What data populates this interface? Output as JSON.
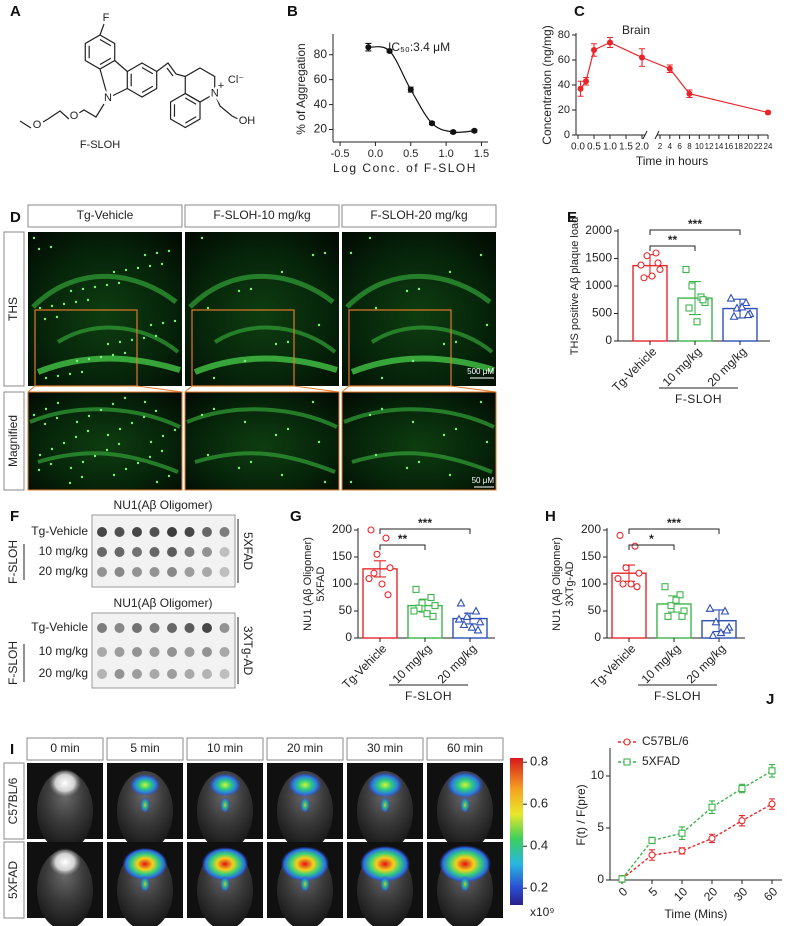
{
  "panel_labels": [
    "A",
    "B",
    "C",
    "D",
    "E",
    "F",
    "G",
    "H",
    "I",
    "J"
  ],
  "panel_a": {
    "labels": [
      "F",
      "N",
      "O",
      "O",
      "N",
      "+",
      "Cl⁻",
      "OH"
    ],
    "name": "F-SLOH"
  },
  "panel_d": {
    "columns": [
      "Tg-Vehicle",
      "F-SLOH-10 mg/kg",
      "F-SLOH-20 mg/kg"
    ],
    "rows": [
      "THS",
      "Magnified"
    ],
    "scale_bars": [
      "500 μM",
      "50 μM"
    ]
  },
  "panel_f": {
    "blots": [
      {
        "title": "NU1(Aβ Oligomer)",
        "rows": [
          "Tg-Vehicle",
          "10 mg/kg",
          "20 mg/kg"
        ],
        "group": "F-SLOH",
        "model": "5XFAD"
      },
      {
        "title": "NU1(Aβ Oligomer)",
        "rows": [
          "Tg-Vehicle",
          "10 mg/kg",
          "20 mg/kg"
        ],
        "group": "F-SLOH",
        "model": "3XTg-AD"
      }
    ]
  },
  "panel_i": {
    "columns": [
      "0 min",
      "5 min",
      "10 min",
      "20 min",
      "30 min",
      "60 min"
    ],
    "rows": [
      "C57BL/6",
      "5XFAD"
    ],
    "colorbar": {
      "clim": [
        0.12,
        0.82
      ],
      "ticks": [
        0.2,
        0.4,
        0.6,
        0.8
      ],
      "unit": "x10⁹"
    }
  },
  "chart_data": [
    {
      "type": "line",
      "x": [
        -0.1,
        0.2,
        0.5,
        0.8,
        1.1,
        1.4
      ],
      "values": [
        86,
        83,
        52,
        25,
        18,
        19
      ],
      "errors": [
        3,
        1,
        2,
        1,
        1,
        1
      ],
      "color": "#111111",
      "smooth": true,
      "xlim": [
        -0.6,
        1.55
      ],
      "xticks": [
        -0.5,
        {
          "value": 0,
          "label": "0.0"
        },
        0.5,
        {
          "value": 1,
          "label": "1.0"
        },
        1.5
      ],
      "ylim": [
        10,
        95
      ],
      "yticks": [
        20,
        40,
        60,
        80
      ],
      "xlabel": "Log Conc. of F-SLOH",
      "ylabel": "% of Aggregation",
      "annotation": "IC₅₀:3.4 μM"
    },
    {
      "type": "line",
      "title": "Brain",
      "x": [
        0.08,
        0.25,
        0.5,
        1,
        2,
        4,
        8,
        24
      ],
      "values": [
        37,
        43,
        68,
        74,
        62,
        53,
        33,
        18
      ],
      "errors": [
        6,
        3,
        5,
        4,
        7,
        3,
        3,
        1
      ],
      "color": "#e8262a",
      "smooth": false,
      "axis_break": true,
      "xlim": [
        0,
        2
      ],
      "xticks": [
        {
          "value": 0,
          "label": "0.0"
        },
        0.5,
        {
          "value": 1,
          "label": "1.0"
        },
        1.5,
        {
          "value": 2,
          "label": "2.0"
        }
      ],
      "x2lim": [
        2,
        24
      ],
      "x2ticks": [
        2,
        4,
        6,
        8,
        10,
        12,
        14,
        16,
        18,
        20,
        22,
        24
      ],
      "ylim": [
        0,
        80
      ],
      "yticks": [
        0,
        20,
        40,
        60,
        80
      ],
      "xlabel": "Time in hours",
      "ylabel": "Concentration (ng/mg)"
    },
    {
      "type": "bar",
      "categories": [
        "Tg-Vehicle",
        "10 mg/kg",
        "20 mg/kg"
      ],
      "values": [
        1370,
        780,
        590
      ],
      "errors": [
        200,
        300,
        170
      ],
      "colors": [
        "#e8262a",
        "#3cb44b",
        "#2e4fb5"
      ],
      "points": [
        [
          1380,
          1600,
          1550,
          1300,
          1150,
          1180,
          1420
        ],
        [
          1300,
          800,
          1000,
          700,
          600,
          350,
          750
        ],
        [
          780,
          700,
          600,
          500,
          450,
          620,
          480
        ]
      ],
      "ylim": [
        0,
        2000
      ],
      "yticks": [
        0,
        500,
        1000,
        1500,
        2000
      ],
      "ylabel": [
        "THS positive Aβ plaque load"
      ],
      "group_label": "F-SLOH",
      "significance": [
        "**",
        "***"
      ]
    },
    {
      "type": "bar",
      "categories": [
        "Tg-Vehicle",
        "10 mg/kg",
        "20 mg/kg"
      ],
      "values": [
        128,
        60,
        36
      ],
      "errors": [
        15,
        12,
        10
      ],
      "colors": [
        "#e8262a",
        "#3cb44b",
        "#2e4fb5"
      ],
      "points": [
        [
          200,
          185,
          155,
          130,
          120,
          100,
          80,
          110
        ],
        [
          90,
          75,
          65,
          60,
          55,
          45,
          40,
          50
        ],
        [
          65,
          50,
          40,
          30,
          25,
          20,
          15,
          35
        ]
      ],
      "ylim": [
        0,
        200
      ],
      "yticks": [
        0,
        50,
        100,
        150,
        200
      ],
      "ylabel": [
        "NU1 (Aβ Oligomer)",
        "5XFAD"
      ],
      "group_label": "F-SLOH",
      "significance": [
        "**",
        "***"
      ]
    },
    {
      "type": "bar",
      "categories": [
        "Tg-Vehicle",
        "10 mg/kg",
        "20 mg/kg"
      ],
      "values": [
        120,
        63,
        32
      ],
      "errors": [
        15,
        15,
        20
      ],
      "colors": [
        "#e8262a",
        "#3cb44b",
        "#2e4fb5"
      ],
      "points": [
        [
          190,
          170,
          130,
          120,
          100,
          100,
          95,
          110
        ],
        [
          95,
          80,
          60,
          50,
          40,
          70,
          40
        ],
        [
          55,
          50,
          30,
          20,
          5,
          10,
          15
        ]
      ],
      "ylim": [
        0,
        200
      ],
      "yticks": [
        0,
        50,
        100,
        150,
        200
      ],
      "ylabel": [
        "NU1 (Aβ Oligomer)",
        "3XTg-AD"
      ],
      "group_label": "F-SLOH",
      "significance": [
        "*",
        "***"
      ]
    },
    {
      "type": "line",
      "categories": [
        "0",
        "5",
        "10",
        "20",
        "30",
        "60"
      ],
      "dashed": true,
      "legend": "upper-left",
      "series": [
        {
          "name": "C57BL/6",
          "color": "#e8262a",
          "values": [
            0.1,
            2.4,
            2.8,
            4.0,
            5.7,
            7.3
          ],
          "errors": [
            0.3,
            0.5,
            0.3,
            0.4,
            0.5,
            0.5
          ]
        },
        {
          "name": "5XFAD",
          "color": "#3cb44b",
          "values": [
            0.1,
            3.8,
            4.5,
            7.0,
            8.8,
            10.5
          ],
          "errors": [
            0.3,
            0.3,
            0.6,
            0.6,
            0.4,
            0.6
          ]
        }
      ],
      "ylim": [
        0,
        12.5
      ],
      "yticks": [
        0,
        5,
        10
      ],
      "xlabel": "Time (Mins)",
      "ylabel": "F(t) / F(pre)"
    }
  ]
}
